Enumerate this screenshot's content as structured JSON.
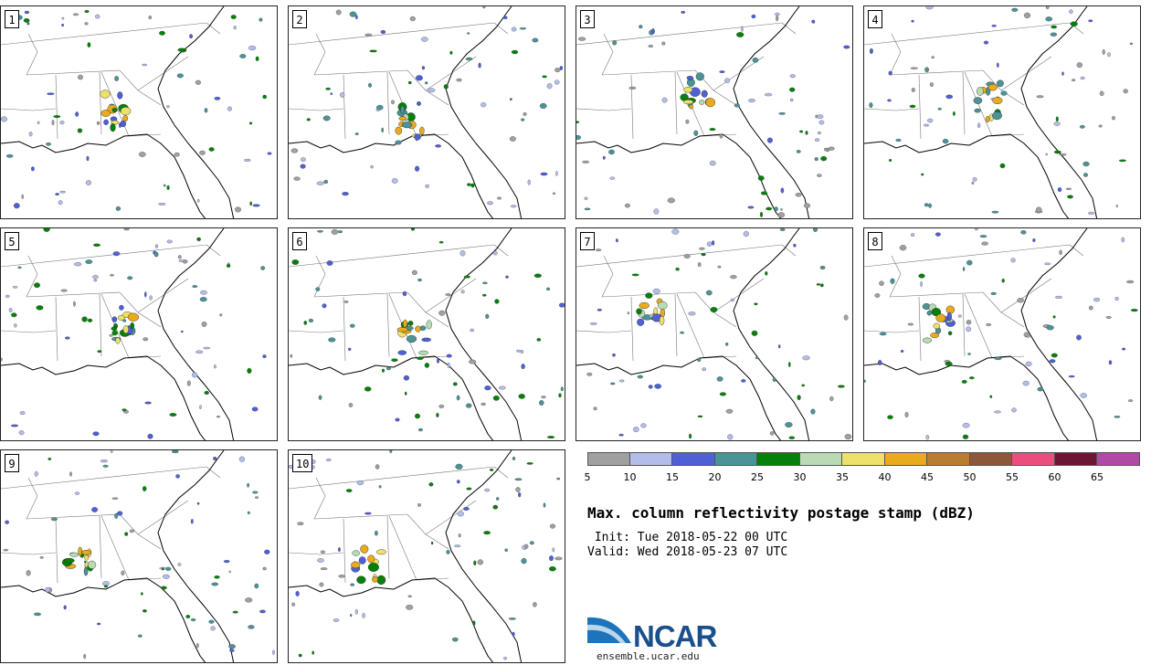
{
  "panels": [
    {
      "label": "1"
    },
    {
      "label": "2"
    },
    {
      "label": "3"
    },
    {
      "label": "4"
    },
    {
      "label": "5"
    },
    {
      "label": "6"
    },
    {
      "label": "7"
    },
    {
      "label": "8"
    },
    {
      "label": "9"
    },
    {
      "label": "10"
    }
  ],
  "legend": {
    "colors": [
      "#a0a0a0",
      "#b3bdea",
      "#4f5fd6",
      "#4b9396",
      "#06800a",
      "#b8dbb5",
      "#ede16a",
      "#e9aa1e",
      "#b97d32",
      "#8e5737",
      "#ec4d7f",
      "#6c1535",
      "#b04aa6"
    ],
    "ticks": [
      "5",
      "10",
      "15",
      "20",
      "25",
      "30",
      "35",
      "40",
      "45",
      "50",
      "55",
      "60",
      "65"
    ]
  },
  "title": "Max. column reflectivity postage stamp (dBZ)",
  "init": " Init: Tue 2018-05-22 00 UTC",
  "valid": "Valid: Wed 2018-05-23 07 UTC",
  "logo": {
    "text": "NCAR",
    "url": "ensemble.ucar.edu",
    "color": "#1b4f8a"
  }
}
